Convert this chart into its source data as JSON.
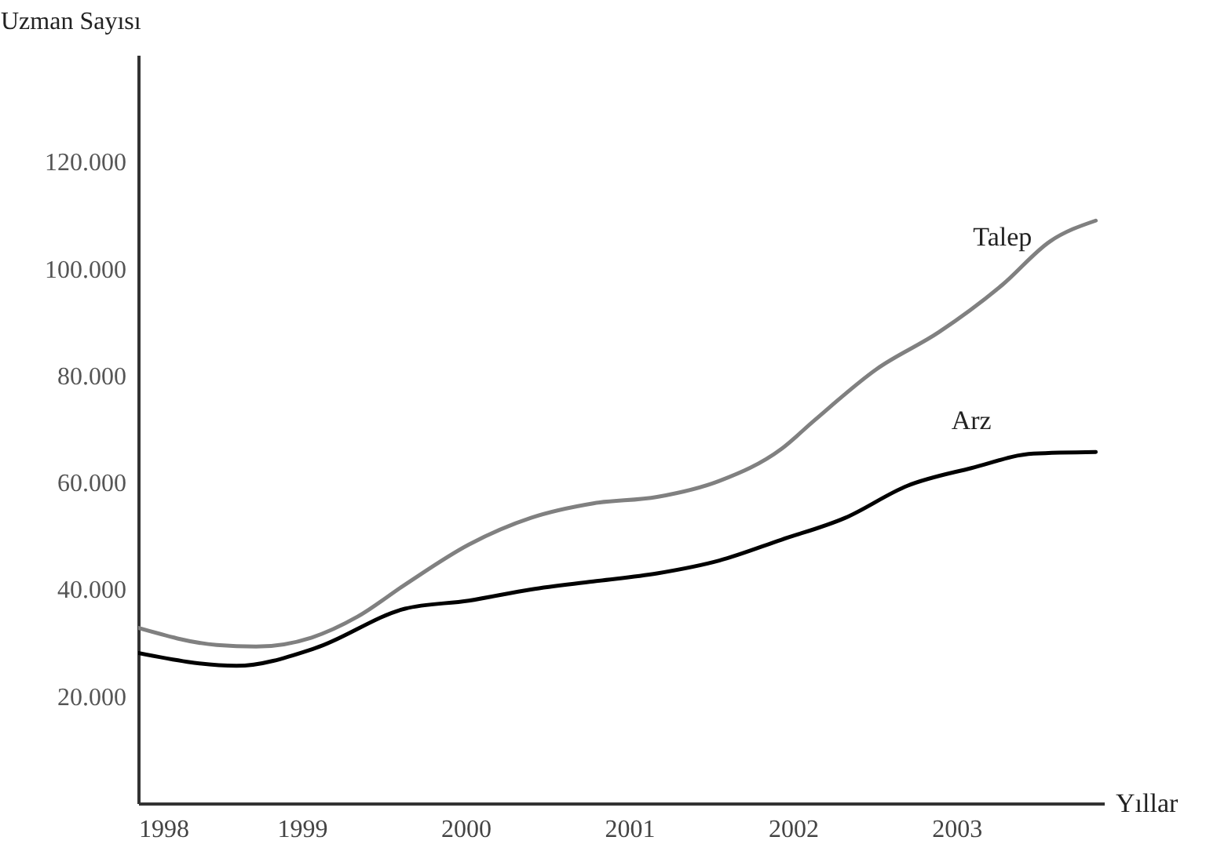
{
  "chart_data": {
    "type": "line",
    "xlabel": "Yıllar",
    "ylabel": "Uzman Sayısı",
    "xlim": [
      1998,
      2003.9
    ],
    "ylim": [
      0,
      140000
    ],
    "xticks": [
      1998,
      1999,
      2000,
      2001,
      2002,
      2003
    ],
    "yticks": [
      {
        "value": 20000,
        "label": "20.000"
      },
      {
        "value": 40000,
        "label": "40.000"
      },
      {
        "value": 60000,
        "label": "60.000"
      },
      {
        "value": 80000,
        "label": "80.000"
      },
      {
        "value": 100000,
        "label": "100.000"
      },
      {
        "value": 120000,
        "label": "120.000"
      }
    ],
    "series": [
      {
        "name": "Talep",
        "color": "#808080",
        "x": [
          1998.0,
          1998.48,
          1998.72,
          1999.06,
          1999.34,
          1999.63,
          2000.02,
          2000.4,
          2000.78,
          2001.17,
          2001.55,
          2001.93,
          2002.13,
          2002.51,
          2002.89,
          2003.28,
          2003.57,
          2003.85
        ],
        "values": [
          32800,
          29600,
          29300,
          31000,
          34900,
          40900,
          48400,
          53400,
          56100,
          57300,
          60300,
          66300,
          71600,
          81200,
          88100,
          97000,
          105100,
          109000
        ]
      },
      {
        "name": "Arz",
        "color": "#000000",
        "x": [
          1998.0,
          1998.6,
          1999.08,
          1999.63,
          2000.02,
          2000.4,
          2000.78,
          2001.17,
          2001.55,
          2001.93,
          2002.32,
          2002.7,
          2003.09,
          2003.47,
          2003.85
        ],
        "values": [
          28100,
          25700,
          29000,
          36400,
          37900,
          40000,
          41500,
          43000,
          45400,
          49300,
          53400,
          59400,
          62700,
          65400,
          65700
        ]
      }
    ]
  }
}
